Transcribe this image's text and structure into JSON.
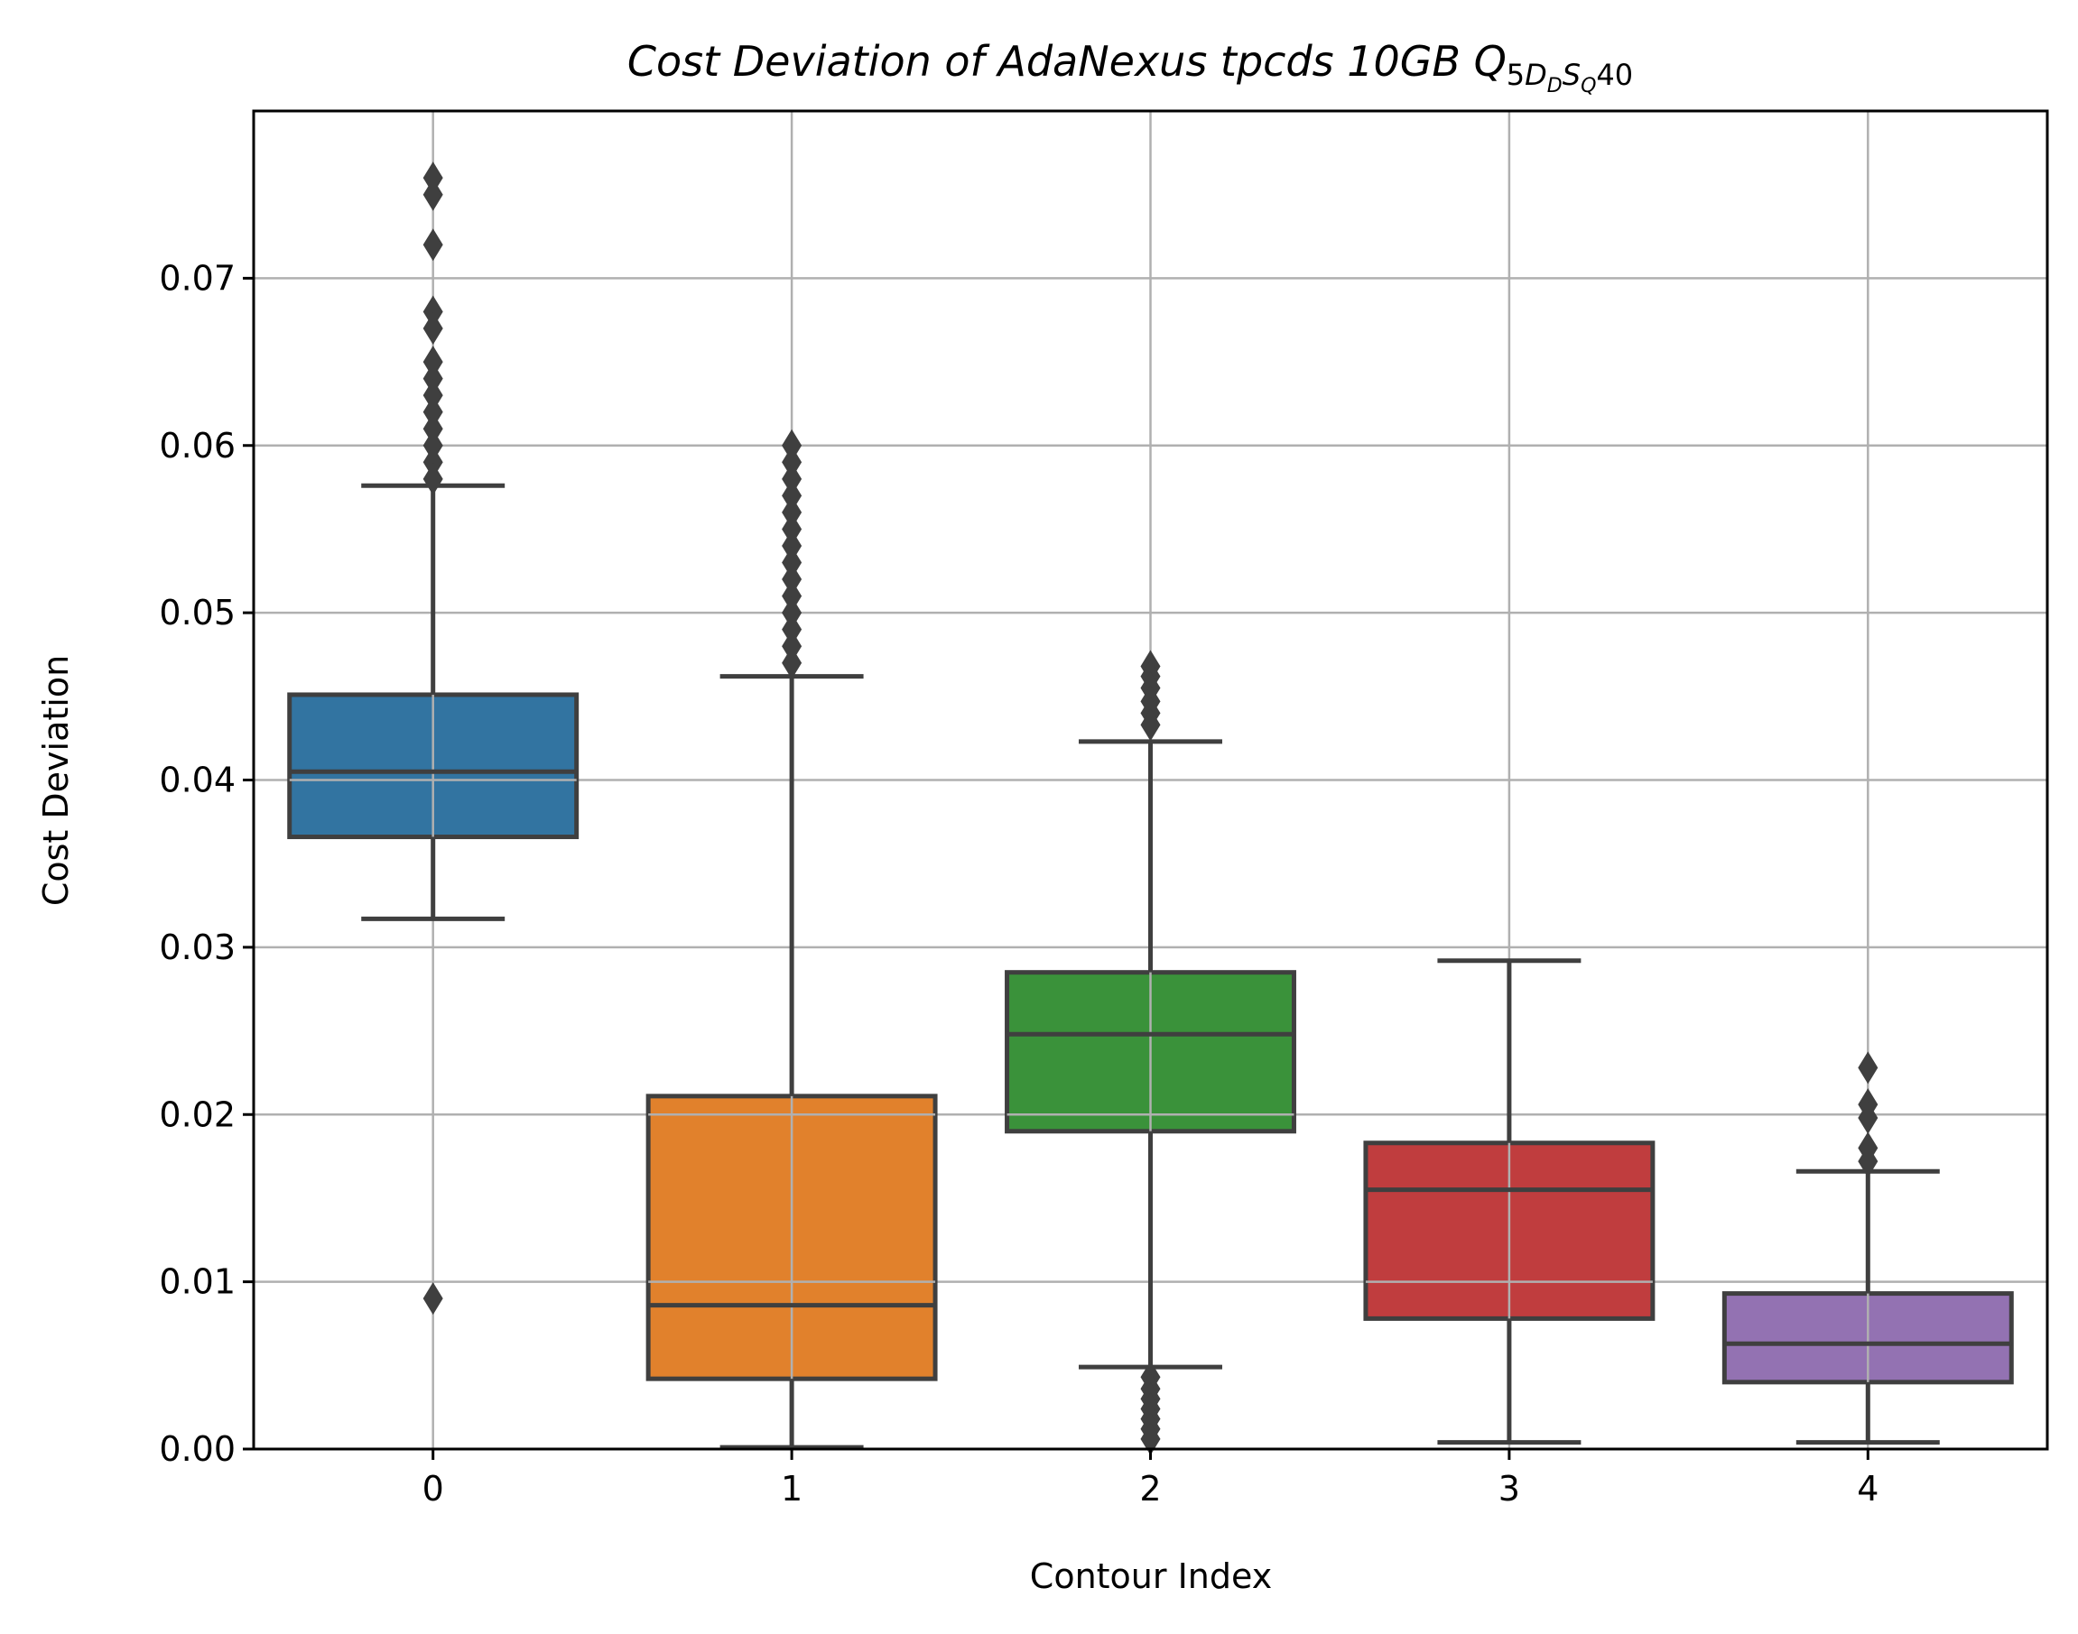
{
  "chart_data": {
    "type": "box",
    "title_parts": {
      "main": "Cost Deviation of AdaNexus tpcds  10GB  ",
      "q": "Q",
      "sub_5": "5",
      "sub_D": "D",
      "sub_D2": "D",
      "sub_S": "S",
      "sub_Q": "Q",
      "tail": "40"
    },
    "xlabel": "Contour Index",
    "ylabel": "Cost Deviation",
    "categories": [
      "0",
      "1",
      "2",
      "3",
      "4"
    ],
    "ylim": [
      0.0,
      0.08
    ],
    "yticks": [
      0.0,
      0.01,
      0.02,
      0.03,
      0.04,
      0.05,
      0.06,
      0.07
    ],
    "ytick_labels": [
      "0.00",
      "0.01",
      "0.02",
      "0.03",
      "0.04",
      "0.05",
      "0.06",
      "0.07"
    ],
    "grid": true,
    "boxes": [
      {
        "category": "0",
        "color": "#3274a1",
        "whisker_low": 0.0317,
        "q1": 0.0366,
        "median": 0.0405,
        "q3": 0.0451,
        "whisker_high": 0.0576,
        "outliers": [
          0.076,
          0.075,
          0.072,
          0.068,
          0.067,
          0.065,
          0.064,
          0.063,
          0.062,
          0.061,
          0.06,
          0.059,
          0.058,
          0.009
        ]
      },
      {
        "category": "1",
        "color": "#e1812c",
        "whisker_low": 0.0001,
        "q1": 0.0042,
        "median": 0.0086,
        "q3": 0.0211,
        "whisker_high": 0.0462,
        "outliers": [
          0.06,
          0.059,
          0.058,
          0.057,
          0.056,
          0.055,
          0.054,
          0.053,
          0.052,
          0.051,
          0.05,
          0.049,
          0.048,
          0.047
        ]
      },
      {
        "category": "2",
        "color": "#3a923a",
        "whisker_low": 0.0049,
        "q1": 0.019,
        "median": 0.0248,
        "q3": 0.0285,
        "whisker_high": 0.0423,
        "outliers": [
          0.0468,
          0.0462,
          0.0455,
          0.0447,
          0.044,
          0.0433,
          0.0043,
          0.0036,
          0.003,
          0.0024,
          0.0018,
          0.0012,
          0.0006
        ]
      },
      {
        "category": "3",
        "color": "#c03d3e",
        "whisker_low": 0.0004,
        "q1": 0.0078,
        "median": 0.0155,
        "q3": 0.0183,
        "whisker_high": 0.0292,
        "outliers": []
      },
      {
        "category": "4",
        "color": "#9372b2",
        "whisker_low": 0.0004,
        "q1": 0.004,
        "median": 0.0063,
        "q3": 0.0093,
        "whisker_high": 0.0166,
        "outliers": [
          0.0228,
          0.0206,
          0.0198,
          0.018,
          0.0172
        ]
      }
    ],
    "colors": {
      "edge": "#3f3f3f",
      "grid": "#b0b0b0",
      "axis": "#000000"
    }
  }
}
